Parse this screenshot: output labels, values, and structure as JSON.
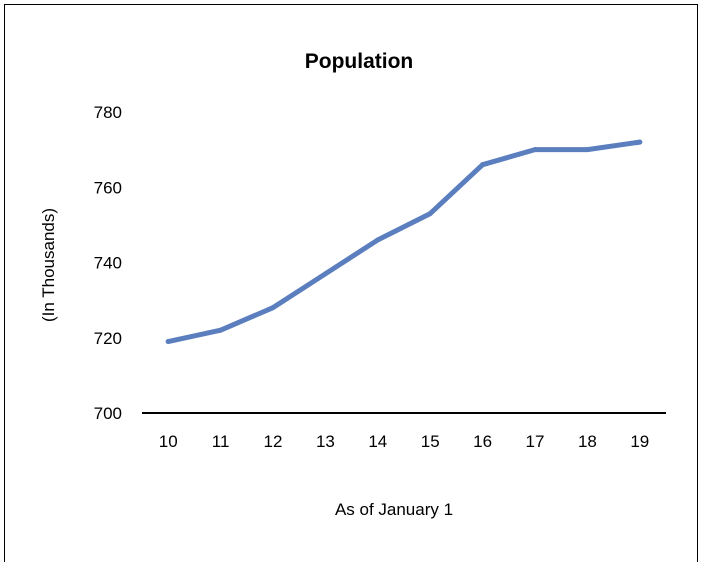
{
  "chart_data": {
    "type": "line",
    "title": "Population",
    "xlabel": "As of January 1",
    "ylabel": "(In Thousands)",
    "categories": [
      "10",
      "11",
      "12",
      "13",
      "14",
      "15",
      "16",
      "17",
      "18",
      "19"
    ],
    "series": [
      {
        "values": [
          719,
          722,
          728,
          737,
          746,
          753,
          766,
          770,
          770,
          772
        ],
        "color": "#5b7fbe"
      }
    ],
    "ylim": [
      700,
      780
    ],
    "yticks": [
      "700",
      "720",
      "740",
      "760",
      "780"
    ],
    "grid": false,
    "legend": "none"
  }
}
